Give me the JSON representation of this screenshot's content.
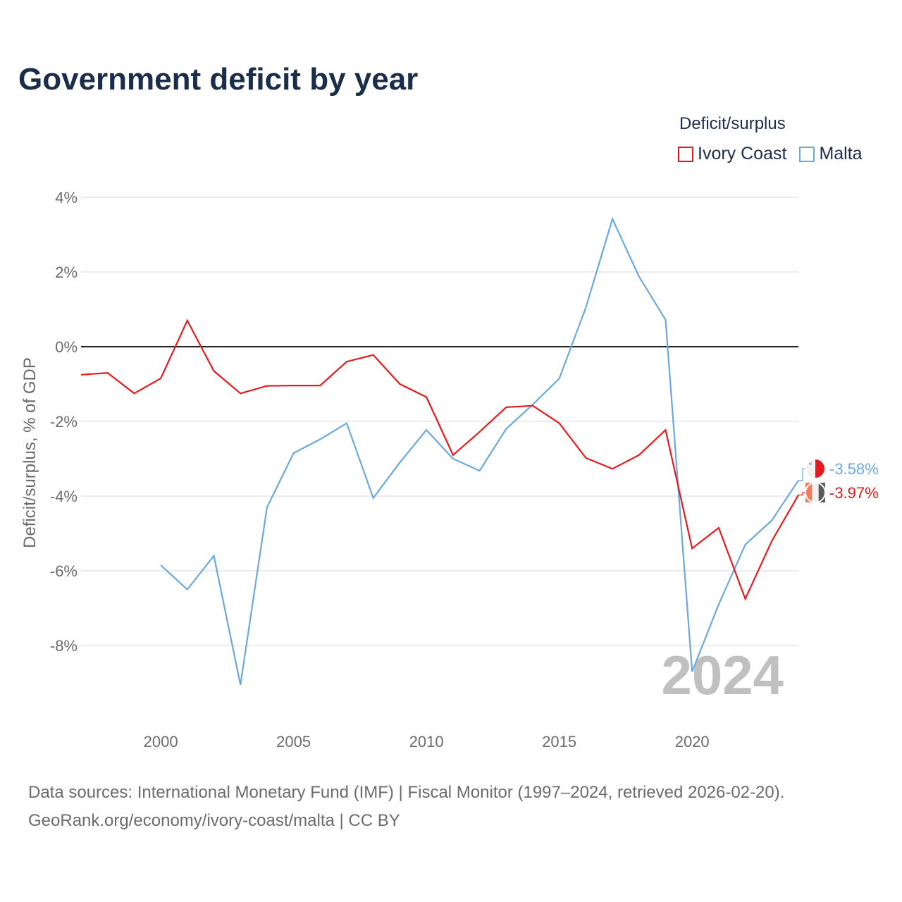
{
  "title": "Government deficit by year",
  "legend": {
    "title": "Deficit/surplus",
    "items": [
      {
        "label": "Ivory Coast",
        "color": "#e8191d"
      },
      {
        "label": "Malta",
        "color": "#6aa8e0"
      }
    ]
  },
  "year_overlay": "2024",
  "source_line1": "Data sources: International Monetary Fund (IMF) | Fiscal Monitor (1997–2024, retrieved 2026-02-20).",
  "source_line2": "GeoRank.org/economy/ivory-coast/malta | CC BY",
  "chart_data": {
    "type": "line",
    "title": "Government deficit by year",
    "xlabel": "",
    "ylabel": "Deficit/surplus, % of GDP",
    "xlim": [
      1997,
      2024
    ],
    "ylim": [
      -10,
      4
    ],
    "x_ticks": [
      2000,
      2005,
      2010,
      2015,
      2020
    ],
    "x_tick_labels": [
      "2000",
      "2005",
      "2010",
      "2015",
      "2020"
    ],
    "y_ticks": [
      4,
      2,
      0,
      -2,
      -4,
      -6,
      -8
    ],
    "y_tick_labels": [
      "4%",
      "2%",
      "0%",
      "-2%",
      "-4%",
      "-6%",
      "-8%"
    ],
    "zero_line": true,
    "series": [
      {
        "name": "Ivory Coast",
        "color": "#e8191d",
        "end_label": "-3.97%",
        "points": [
          [
            1997,
            -0.75
          ],
          [
            1998,
            -0.7
          ],
          [
            1999,
            -1.25
          ],
          [
            2000,
            -0.85
          ],
          [
            2001,
            0.7
          ],
          [
            2002,
            -0.65
          ],
          [
            2003,
            -1.25
          ],
          [
            2004,
            -1.05
          ],
          [
            2005,
            -1.04
          ],
          [
            2006,
            -1.04
          ],
          [
            2007,
            -0.4
          ],
          [
            2008,
            -0.22
          ],
          [
            2009,
            -1.0
          ],
          [
            2010,
            -1.35
          ],
          [
            2011,
            -2.9
          ],
          [
            2012,
            -2.28
          ],
          [
            2013,
            -1.62
          ],
          [
            2014,
            -1.58
          ],
          [
            2015,
            -2.05
          ],
          [
            2016,
            -2.98
          ],
          [
            2017,
            -3.27
          ],
          [
            2018,
            -2.9
          ],
          [
            2019,
            -2.23
          ],
          [
            2020,
            -5.4
          ],
          [
            2021,
            -4.85
          ],
          [
            2022,
            -6.75
          ],
          [
            2023,
            -5.2
          ],
          [
            2024,
            -3.97
          ]
        ]
      },
      {
        "name": "Malta",
        "color": "#6aa8e0",
        "end_label": "-3.58%",
        "points": [
          [
            2000,
            -5.85
          ],
          [
            2001,
            -6.5
          ],
          [
            2002,
            -5.6
          ],
          [
            2003,
            -9.05
          ],
          [
            2004,
            -4.3
          ],
          [
            2005,
            -2.85
          ],
          [
            2006,
            -2.48
          ],
          [
            2007,
            -2.05
          ],
          [
            2008,
            -4.05
          ],
          [
            2009,
            -3.1
          ],
          [
            2010,
            -2.23
          ],
          [
            2011,
            -3.0
          ],
          [
            2012,
            -3.32
          ],
          [
            2013,
            -2.2
          ],
          [
            2014,
            -1.55
          ],
          [
            2015,
            -0.85
          ],
          [
            2016,
            1.05
          ],
          [
            2017,
            3.42
          ],
          [
            2018,
            1.88
          ],
          [
            2019,
            0.72
          ],
          [
            2020,
            -8.7
          ],
          [
            2021,
            -6.9
          ],
          [
            2022,
            -5.3
          ],
          [
            2023,
            -4.65
          ],
          [
            2024,
            -3.58
          ]
        ]
      }
    ]
  }
}
